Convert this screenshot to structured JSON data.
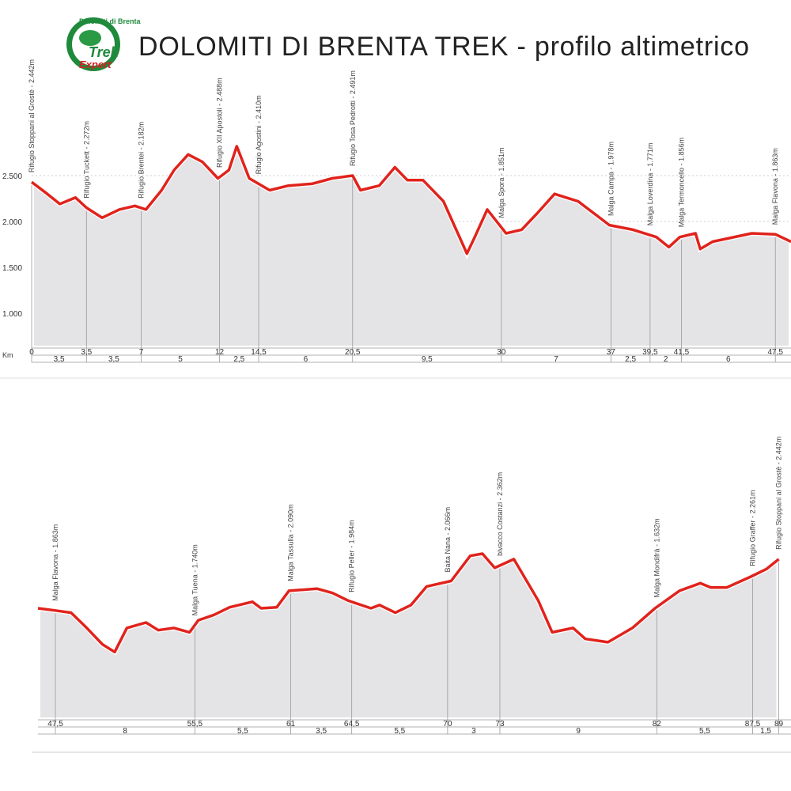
{
  "logo": {
    "top": "Dolomiti di Brenta",
    "main": "Trek",
    "sub": "Expert"
  },
  "title": "DOLOMITI DI BRENTA TREK - profilo altimetrico",
  "chart_data": [
    {
      "type": "area",
      "color": "#e0231c",
      "fill": "#e4e4e7",
      "grid": true,
      "x_label": "Km",
      "x": [
        0,
        1.0,
        1.8,
        2.8,
        3.5,
        4.5,
        5.6,
        6.6,
        7.3,
        8.3,
        9.1,
        10.0,
        10.9,
        11.9,
        12.6,
        13.1,
        13.9,
        15.2,
        16.4,
        17.9,
        19.2,
        20.5,
        21.0,
        22.2,
        23.2,
        24.0,
        25.0,
        26.3,
        27.8,
        28.3,
        29.1,
        30.3,
        31.3,
        32.3,
        33.4,
        34.9,
        36.9,
        38.4,
        39.9,
        40.7,
        41.4,
        42.4,
        42.7,
        43.5,
        46.0,
        47.5,
        48.5
      ],
      "values": [
        2430,
        2300,
        2190,
        2260,
        2150,
        2040,
        2130,
        2170,
        2130,
        2340,
        2560,
        2730,
        2650,
        2470,
        2560,
        2820,
        2470,
        2340,
        2390,
        2410,
        2470,
        2500,
        2340,
        2390,
        2590,
        2450,
        2450,
        2220,
        1650,
        1830,
        2130,
        1870,
        1910,
        2090,
        2300,
        2220,
        1960,
        1910,
        1830,
        1720,
        1830,
        1870,
        1700,
        1780,
        1870,
        1860,
        1780
      ],
      "xlim": [
        0,
        48.5
      ],
      "xticks": [
        0,
        {
          "value": 3.5,
          "label": "3,5"
        },
        7,
        12,
        {
          "value": 14.5,
          "label": "14,5"
        },
        {
          "value": 20.5,
          "label": "20,5"
        },
        30,
        37,
        {
          "value": 39.5,
          "label": "39,5"
        },
        {
          "value": 41.5,
          "label": "41,5"
        },
        {
          "value": 47.5,
          "label": "47,5"
        }
      ],
      "segments": [
        {
          "value": 3.5,
          "label": "3,5"
        },
        {
          "value": 3.5,
          "label": "3,5"
        },
        5,
        {
          "value": 2.5,
          "label": "2,5"
        },
        6,
        {
          "value": 9.5,
          "label": "9,5"
        },
        7,
        {
          "value": 2.5,
          "label": "2,5"
        },
        2,
        6
      ],
      "ylim": [
        620,
        3000
      ],
      "yticks": [
        {
          "value": 1000,
          "label": "1.000"
        },
        {
          "value": 1500,
          "label": "1.500"
        },
        {
          "value": 2000,
          "label": "2.000"
        },
        {
          "value": 2500,
          "label": "2.500"
        }
      ],
      "annotations": [
        {
          "label": "Rifugio Stoppani al Grostè - 2.442m",
          "x": 0
        },
        {
          "label": "Rifugio Tuckett - 2.272m",
          "x": 3.5
        },
        {
          "label": "Rifugio Brentei - 2.182m",
          "x": 7
        },
        {
          "label": "Rifugio XII Apostoli - 2.488m",
          "x": 12
        },
        {
          "label": "Rifugio Agostini - 2.410m",
          "x": 14.5
        },
        {
          "label": "Rifugio Tosa Pedrotti - 2.491m",
          "x": 20.5
        },
        {
          "label": "Malga Spora - 1.851m",
          "x": 30
        },
        {
          "label": "Malga Campa - 1.978m",
          "x": 37
        },
        {
          "label": "Malga Loverdina - 1.771m",
          "x": 39.5
        },
        {
          "label": "Malga Termoncello - 1.856m",
          "x": 41.5
        },
        {
          "label": "Malga Flavona - 1.863m",
          "x": 47.5
        }
      ]
    },
    {
      "type": "area",
      "color": "#e0231c",
      "fill": "#e4e4e7",
      "x": [
        46.5,
        47.5,
        48.4,
        49.3,
        50.2,
        50.9,
        51.6,
        52.7,
        53.4,
        54.3,
        55.2,
        55.7,
        56.6,
        57.5,
        58.8,
        59.3,
        60.2,
        60.9,
        62.5,
        63.4,
        64.3,
        65.6,
        66.1,
        67.0,
        67.9,
        68.8,
        70.2,
        71.3,
        72.0,
        72.7,
        73.8,
        75.2,
        76.0,
        77.2,
        77.9,
        79.2,
        80.6,
        81.9,
        83.3,
        84.5,
        85.1,
        86.0,
        87.4,
        88.3,
        89.0
      ],
      "values": [
        1880,
        1860,
        1840,
        1700,
        1550,
        1480,
        1700,
        1750,
        1680,
        1700,
        1660,
        1770,
        1820,
        1890,
        1940,
        1880,
        1890,
        2040,
        2060,
        2020,
        1950,
        1880,
        1910,
        1840,
        1910,
        2080,
        2130,
        2360,
        2380,
        2250,
        2330,
        1950,
        1660,
        1700,
        1600,
        1570,
        1700,
        1880,
        2040,
        2110,
        2070,
        2070,
        2170,
        2240,
        2330
      ],
      "xlim": [
        46.5,
        89.7
      ],
      "xticks": [
        {
          "value": 47.5,
          "label": "47,5"
        },
        {
          "value": 55.5,
          "label": "55,5"
        },
        61,
        {
          "value": 64.5,
          "label": "64,5"
        },
        70,
        73,
        82,
        {
          "value": 87.5,
          "label": "87,5"
        },
        89
      ],
      "segments": [
        8,
        {
          "value": 5.5,
          "label": "5,5"
        },
        {
          "value": 3.5,
          "label": "3,5"
        },
        {
          "value": 5.5,
          "label": "5,5"
        },
        3,
        9,
        {
          "value": 5.5,
          "label": "5,5"
        },
        {
          "value": 1.5,
          "label": "1,5"
        }
      ],
      "ylim": [
        860,
        3400
      ],
      "annotations": [
        {
          "label": "Malga Flavona - 1.863m",
          "x": 47.5
        },
        {
          "label": "Malga Tuena - 1.740m",
          "x": 55.5
        },
        {
          "label": "Malga Tassulla - 2.090m",
          "x": 61
        },
        {
          "label": "Rifugio Peller - 1.984m",
          "x": 64.5
        },
        {
          "label": "Baita Nana - 2.066m",
          "x": 70
        },
        {
          "label": "bivacco Costanzi - 2.362m",
          "x": 73
        },
        {
          "label": "Malga Mondifrà - 1.632m",
          "x": 82
        },
        {
          "label": "Rifugio Graffer - 2.261m",
          "x": 87.5
        },
        {
          "label": "Rifugio Stoppani al Grostè - 2.442m",
          "x": 89
        }
      ]
    }
  ]
}
